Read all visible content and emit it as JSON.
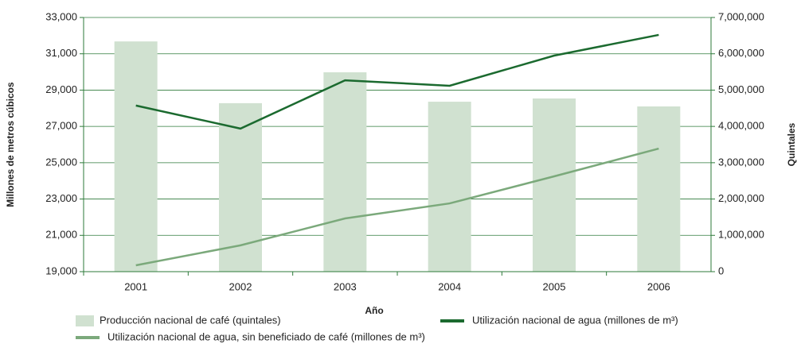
{
  "chart_data": {
    "type": "combo",
    "xlabel": "Año",
    "ylabel": "Millones de metros cúbicos",
    "y2label": "Quintales",
    "categories": [
      "2001",
      "2002",
      "2003",
      "2004",
      "2005",
      "2006"
    ],
    "series": [
      {
        "name": "Producción nacional de café (quintales)",
        "type": "bar",
        "axis": "y2",
        "color": "#d0e1d0",
        "values": [
          6340000,
          4640000,
          5490000,
          4680000,
          4770000,
          4550000
        ]
      },
      {
        "name": "Utilización nacional de agua (millones de m³)",
        "type": "line",
        "axis": "y",
        "color": "#1b6a2f",
        "values": [
          28150,
          26880,
          29540,
          29240,
          30900,
          32040
        ]
      },
      {
        "name": "Utilización nacional de agua, sin beneficiado de café (millones de m³)",
        "type": "line",
        "axis": "y",
        "color": "#7ba97b",
        "values": [
          19350,
          20450,
          21930,
          22760,
          24250,
          25780
        ]
      }
    ],
    "ylim": [
      19000,
      33000
    ],
    "yticks": [
      {
        "value": 19000,
        "label": "19,000"
      },
      {
        "value": 21000,
        "label": "21,000"
      },
      {
        "value": 23000,
        "label": "23,000"
      },
      {
        "value": 25000,
        "label": "25,000"
      },
      {
        "value": 27000,
        "label": "27,000"
      },
      {
        "value": 29000,
        "label": "29,000"
      },
      {
        "value": 31000,
        "label": "31,000"
      },
      {
        "value": 33000,
        "label": "33,000"
      }
    ],
    "y2lim": [
      0,
      7000000
    ],
    "y2ticks": [
      0,
      {
        "value": 1000000,
        "label": "1,000,000"
      },
      {
        "value": 2000000,
        "label": "2,000,000"
      },
      {
        "value": 3000000,
        "label": "3,000,000"
      },
      {
        "value": 4000000,
        "label": "4,000,000"
      },
      {
        "value": 5000000,
        "label": "5,000,000"
      },
      {
        "value": 6000000,
        "label": "6,000,000"
      },
      {
        "value": 7000000,
        "label": "7,000,000"
      }
    ],
    "grid": true,
    "legend": "bottom"
  }
}
